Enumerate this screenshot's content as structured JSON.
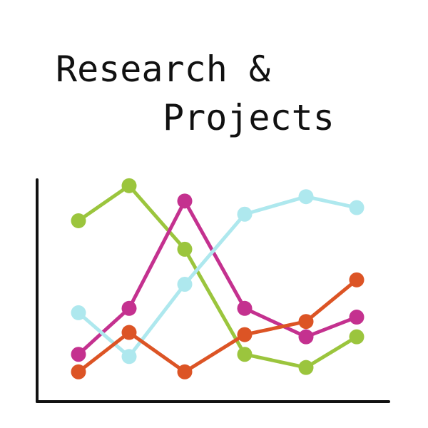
{
  "title": {
    "line1": "Research &",
    "line2": "Projects"
  },
  "illustration": {
    "type": "line",
    "series": [
      {
        "color": "#9bc53d",
        "values": [
          7.9,
          9.5,
          6.6,
          1.8,
          1.2,
          2.6
        ]
      },
      {
        "color": "#c4318f",
        "values": [
          1.8,
          3.9,
          8.8,
          3.9,
          2.6,
          3.5
        ]
      },
      {
        "color": "#aee8ee",
        "values": [
          3.7,
          1.7,
          5.0,
          8.2,
          9.0,
          8.5
        ]
      },
      {
        "color": "#dc5425",
        "values": [
          1.0,
          2.8,
          1.0,
          2.7,
          3.3,
          5.2
        ]
      }
    ],
    "axis_color": "#111111"
  }
}
